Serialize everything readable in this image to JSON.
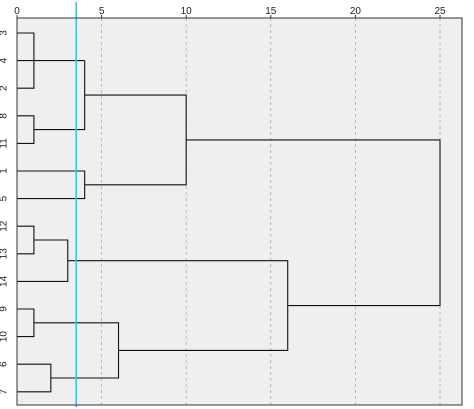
{
  "chart_data": {
    "type": "dendrogram",
    "orientation": "horizontal",
    "title": "",
    "xlabel": "",
    "ylabel": "",
    "xlim": [
      0,
      26.3
    ],
    "x_ticks": [
      0,
      5,
      10,
      15,
      20,
      25
    ],
    "grid": true,
    "leaves": [
      "3",
      "4",
      "2",
      "8",
      "11",
      "1",
      "5",
      "12",
      "13",
      "14",
      "9",
      "10",
      "6",
      "7"
    ],
    "merges": [
      {
        "a": "leaf:0",
        "b": "leaf:2",
        "height": 1.0
      },
      {
        "a": "leaf:3",
        "b": "leaf:4",
        "height": 1.0
      },
      {
        "a": "node:0",
        "b": "leaf:1",
        "height": 4.0
      },
      {
        "a": "node:2",
        "b": "node:1",
        "height": 4.0
      },
      {
        "a": "leaf:5",
        "b": "leaf:6",
        "height": 4.0
      },
      {
        "a": "node:3",
        "b": "node:4",
        "height": 10.0
      },
      {
        "a": "leaf:7",
        "b": "leaf:8",
        "height": 1.0
      },
      {
        "a": "node:6",
        "b": "leaf:9",
        "height": 3.0
      },
      {
        "a": "leaf:10",
        "b": "leaf:11",
        "height": 1.0
      },
      {
        "a": "leaf:12",
        "b": "leaf:13",
        "height": 2.0
      },
      {
        "a": "node:8",
        "b": "node:9",
        "height": 6.0
      },
      {
        "a": "node:7",
        "b": "node:10",
        "height": 16.0
      },
      {
        "a": "node:5",
        "b": "node:11",
        "height": 25.0
      }
    ],
    "cut_line": {
      "x": 3.5,
      "color": "#28cfe0"
    },
    "colors": {
      "plot_background": "#efefef",
      "branch": "#111111",
      "grid": "#aaaaaa",
      "frame": "#333333"
    }
  }
}
